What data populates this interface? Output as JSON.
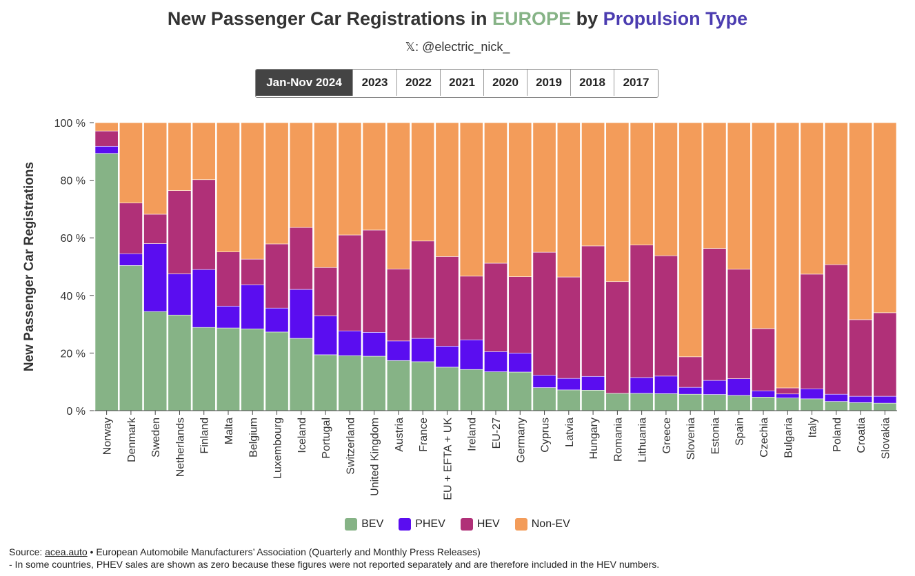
{
  "header": {
    "title_prefix": "New Passenger Car Registrations in ",
    "title_europe": "EUROPE",
    "title_mid": " by ",
    "title_prop": "Propulsion Type",
    "subtitle": "𝕏: @electric_nick_"
  },
  "tabs": [
    {
      "label": "Jan-Nov 2024",
      "active": true
    },
    {
      "label": "2023",
      "active": false
    },
    {
      "label": "2022",
      "active": false
    },
    {
      "label": "2021",
      "active": false
    },
    {
      "label": "2020",
      "active": false
    },
    {
      "label": "2019",
      "active": false
    },
    {
      "label": "2018",
      "active": false
    },
    {
      "label": "2017",
      "active": false
    }
  ],
  "colors": {
    "BEV": "#86b386",
    "PHEV": "#5a0df0",
    "HEV": "#b03078",
    "Non-EV": "#f39c5a"
  },
  "footer": {
    "source_label": "Source: ",
    "source_link": "acea.auto",
    "source_rest": " • European Automobile Manufacturers’ Association (Quarterly and Monthly Press Releases)",
    "note": "- In some countries, PHEV sales are shown as zero because these figures were not reported separately and are therefore included in the HEV numbers."
  },
  "chart_data": {
    "type": "bar",
    "stacked": true,
    "title": "New Passenger Car Registrations in EUROPE by Propulsion Type",
    "ylabel": "New Passenger Car Registrations",
    "xlabel": "",
    "ylim": [
      0,
      100
    ],
    "y_ticks": [
      0,
      20,
      40,
      60,
      80,
      100
    ],
    "y_tick_suffix": " %",
    "legend_position": "bottom-center",
    "categories": [
      "Norway",
      "Denmark",
      "Sweden",
      "Netherlands",
      "Finland",
      "Malta",
      "Belgium",
      "Luxembourg",
      "Iceland",
      "Portugal",
      "Switzerland",
      "United Kingdom",
      "Austria",
      "France",
      "EU + EFTA + UK",
      "Ireland",
      "EU-27",
      "Germany",
      "Cyprus",
      "Latvia",
      "Hungary",
      "Romania",
      "Lithuania",
      "Greece",
      "Slovenia",
      "Estonia",
      "Spain",
      "Czechia",
      "Bulgaria",
      "Italy",
      "Poland",
      "Croatia",
      "Slovakia"
    ],
    "series": [
      {
        "name": "BEV",
        "values": [
          89.3,
          50.4,
          34.4,
          33.2,
          28.9,
          28.7,
          28.4,
          27.3,
          25.1,
          19.4,
          19.1,
          18.9,
          17.4,
          17.0,
          15.1,
          14.3,
          13.5,
          13.4,
          8.0,
          7.2,
          7.1,
          6.0,
          6.0,
          5.9,
          5.7,
          5.6,
          5.3,
          4.7,
          4.4,
          4.1,
          3.2,
          2.8,
          2.6
        ]
      },
      {
        "name": "PHEV",
        "values": [
          2.5,
          4.1,
          23.6,
          14.3,
          20.1,
          7.6,
          15.3,
          8.3,
          17.0,
          13.5,
          8.6,
          8.3,
          6.8,
          8.1,
          7.3,
          10.3,
          7.0,
          6.6,
          4.3,
          4.0,
          4.8,
          0.0,
          5.5,
          6.1,
          2.4,
          4.9,
          5.8,
          2.2,
          1.4,
          3.5,
          2.5,
          2.2,
          2.4
        ]
      },
      {
        "name": "HEV",
        "values": [
          5.3,
          17.6,
          10.2,
          28.9,
          31.2,
          18.8,
          8.9,
          22.3,
          21.5,
          16.8,
          33.3,
          35.5,
          25.0,
          33.8,
          31.1,
          22.1,
          30.7,
          26.5,
          42.7,
          35.2,
          45.3,
          38.8,
          46.0,
          41.8,
          10.6,
          45.8,
          38.0,
          21.6,
          2.1,
          39.8,
          45.0,
          26.6,
          29.0
        ]
      },
      {
        "name": "Non-EV",
        "values": [
          2.9,
          27.9,
          31.8,
          23.6,
          19.8,
          44.9,
          47.4,
          42.1,
          36.4,
          50.3,
          39.0,
          37.3,
          50.8,
          41.1,
          46.5,
          53.3,
          48.8,
          53.5,
          45.0,
          53.6,
          42.8,
          55.2,
          42.5,
          46.2,
          81.3,
          43.7,
          50.9,
          71.5,
          92.1,
          52.6,
          49.3,
          68.4,
          66.0
        ]
      }
    ]
  }
}
